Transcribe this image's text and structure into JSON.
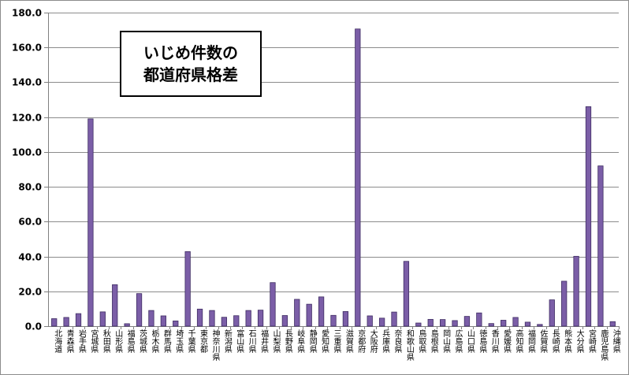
{
  "chart_data": {
    "type": "bar",
    "title_lines": [
      "いじめ件数の",
      "都道府県格差"
    ],
    "xlabel": "",
    "ylabel": "",
    "ylim": [
      0,
      180
    ],
    "yticks": [
      "0.0",
      "20.0",
      "40.0",
      "60.0",
      "80.0",
      "100.0",
      "120.0",
      "140.0",
      "160.0",
      "180.0"
    ],
    "ytick_values": [
      0,
      20,
      40,
      60,
      80,
      100,
      120,
      140,
      160,
      180
    ],
    "grid": true,
    "bar_color": "#7b5ea7",
    "bar_edge_color": "#3f2d63",
    "categories": [
      "北海道",
      "青森県",
      "岩手県",
      "宮城県",
      "秋田県",
      "山形県",
      "福島県",
      "茨城県",
      "栃木県",
      "群馬県",
      "埼玉県",
      "千葉県",
      "東京都",
      "神奈川県",
      "新潟県",
      "富山県",
      "石川県",
      "福井県",
      "山梨県",
      "長野県",
      "岐阜県",
      "静岡県",
      "愛知県",
      "三重県",
      "滋賀県",
      "京都府",
      "大阪府",
      "兵庫県",
      "奈良県",
      "和歌山県",
      "鳥取県",
      "島根県",
      "岡山県",
      "広島県",
      "山口県",
      "徳島県",
      "香川県",
      "愛媛県",
      "高知県",
      "福岡県",
      "佐賀県",
      "長崎県",
      "熊本県",
      "大分県",
      "宮崎県",
      "鹿児島県",
      "沖縄県"
    ],
    "values": [
      4.3,
      5.0,
      7.2,
      119.0,
      8.2,
      23.8,
      1.4,
      18.7,
      9.0,
      5.9,
      3.0,
      42.8,
      9.8,
      9.0,
      5.1,
      6.0,
      9.0,
      9.2,
      25.0,
      6.1,
      15.4,
      12.6,
      16.8,
      6.2,
      8.4,
      170.6,
      5.9,
      4.6,
      8.1,
      37.2,
      1.8,
      3.9,
      3.8,
      3.2,
      5.6,
      7.6,
      1.5,
      3.4,
      5.0,
      2.3,
      1.0,
      15.1,
      25.8,
      40.1,
      126.0,
      92.0,
      2.6
    ]
  }
}
